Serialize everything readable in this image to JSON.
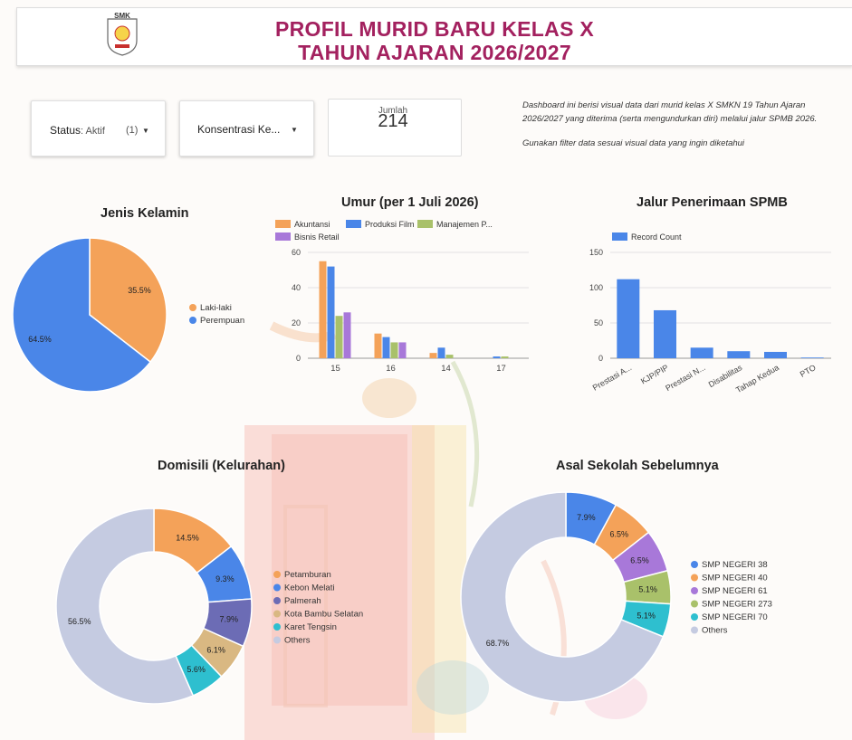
{
  "header": {
    "title_line1": "PROFIL MURID BARU KELAS X",
    "title_line2": "TAHUN AJARAN 2026/2027",
    "logo_text": "SMK"
  },
  "filters": {
    "status": {
      "label": "Status",
      "value": ": Aktif",
      "count": "(1)"
    },
    "konsentrasi": {
      "label": "Konsentrasi Ke..."
    }
  },
  "scorecard": {
    "label": "Jumlah",
    "value": "214"
  },
  "description": {
    "line1": "Dashboard ini berisi visual data dari murid kelas X SMKN 19 Tahun Ajaran 2026/2027 yang diterima (serta mengundurkan diri) melalui jalur SPMB 2026.",
    "line2": "Gunakan filter data sesuai visual data yang ingin diketahui"
  },
  "colors": {
    "accent": "#a3215f",
    "orange": "#f4a259",
    "blue": "#4a86e8",
    "green": "#a9c16a",
    "purple": "#a878d9",
    "darkblue": "#4a86e8",
    "slate": "#6c6cb5",
    "tan": "#d9b882",
    "teal": "#2ebfcf",
    "lightgray": "#c5cbe1"
  },
  "chart_data": [
    {
      "id": "gender",
      "type": "pie",
      "title": "Jenis Kelamin",
      "labels": [
        "Laki-laki",
        "Perempuan"
      ],
      "values": [
        35.5,
        64.5
      ],
      "value_labels": [
        "35.5%",
        "64.5%"
      ],
      "colors": [
        "#f4a259",
        "#4a86e8"
      ],
      "legend": "right"
    },
    {
      "id": "age",
      "type": "bar",
      "title": "Umur (per 1 Juli 2026)",
      "categories": [
        "15",
        "16",
        "14",
        "17"
      ],
      "series": [
        {
          "name": "Akuntansi",
          "values": [
            55,
            14,
            3,
            0
          ],
          "color": "#f4a259"
        },
        {
          "name": "Produksi Film",
          "values": [
            52,
            12,
            6,
            1
          ],
          "color": "#4a86e8"
        },
        {
          "name": "Manajemen P...",
          "values": [
            24,
            9,
            2,
            1
          ],
          "color": "#a9c16a"
        },
        {
          "name": "Bisnis Retail",
          "values": [
            26,
            9,
            0,
            0
          ],
          "color": "#a878d9"
        }
      ],
      "ylim": [
        0,
        60
      ],
      "yticks": [
        "0",
        "20",
        "40",
        "60"
      ],
      "grid": true,
      "legend": "top"
    },
    {
      "id": "jalur",
      "type": "bar",
      "title": "Jalur Penerimaan SPMB",
      "categories": [
        "Prestasi A...",
        "KJP/PIP",
        "Prestasi N...",
        "Disabilitas",
        "Tahap Kedua",
        "PTO"
      ],
      "series": [
        {
          "name": "Record Count",
          "values": [
            112,
            68,
            15,
            10,
            9,
            1
          ],
          "color": "#4a86e8"
        }
      ],
      "ylim": [
        0,
        150
      ],
      "yticks": [
        "0",
        "50",
        "100",
        "150"
      ],
      "grid": true,
      "legend": "top"
    },
    {
      "id": "domisili",
      "type": "pie",
      "donut": true,
      "title": "Domisili (Kelurahan)",
      "labels": [
        "Petamburan",
        "Kebon Melati",
        "Palmerah",
        "Kota Bambu Selatan",
        "Karet Tengsin",
        "Others"
      ],
      "values": [
        14.5,
        9.3,
        7.9,
        6.1,
        5.6,
        56.5
      ],
      "value_labels": [
        "14.5%",
        "9.3%",
        "7.9%",
        "6.1%",
        "5.6%",
        "56.5%"
      ],
      "colors": [
        "#f4a259",
        "#4a86e8",
        "#6c6cb5",
        "#d9b882",
        "#2ebfcf",
        "#c5cbe1"
      ],
      "legend": "right"
    },
    {
      "id": "sekolah",
      "type": "pie",
      "donut": true,
      "title": "Asal Sekolah Sebelumnya",
      "labels": [
        "SMP NEGERI 38",
        "SMP NEGERI 40",
        "SMP NEGERI 61",
        "SMP NEGERI 273",
        "SMP NEGERI 70",
        "Others"
      ],
      "values": [
        7.9,
        6.5,
        6.5,
        5.1,
        5.1,
        68.7
      ],
      "value_labels": [
        "7.9%",
        "6.5%",
        "6.5%",
        "5.1%",
        "5.1%",
        "68.7%"
      ],
      "colors": [
        "#4a86e8",
        "#f4a259",
        "#a878d9",
        "#a9c16a",
        "#2ebfcf",
        "#c5cbe1"
      ],
      "legend": "right"
    }
  ]
}
